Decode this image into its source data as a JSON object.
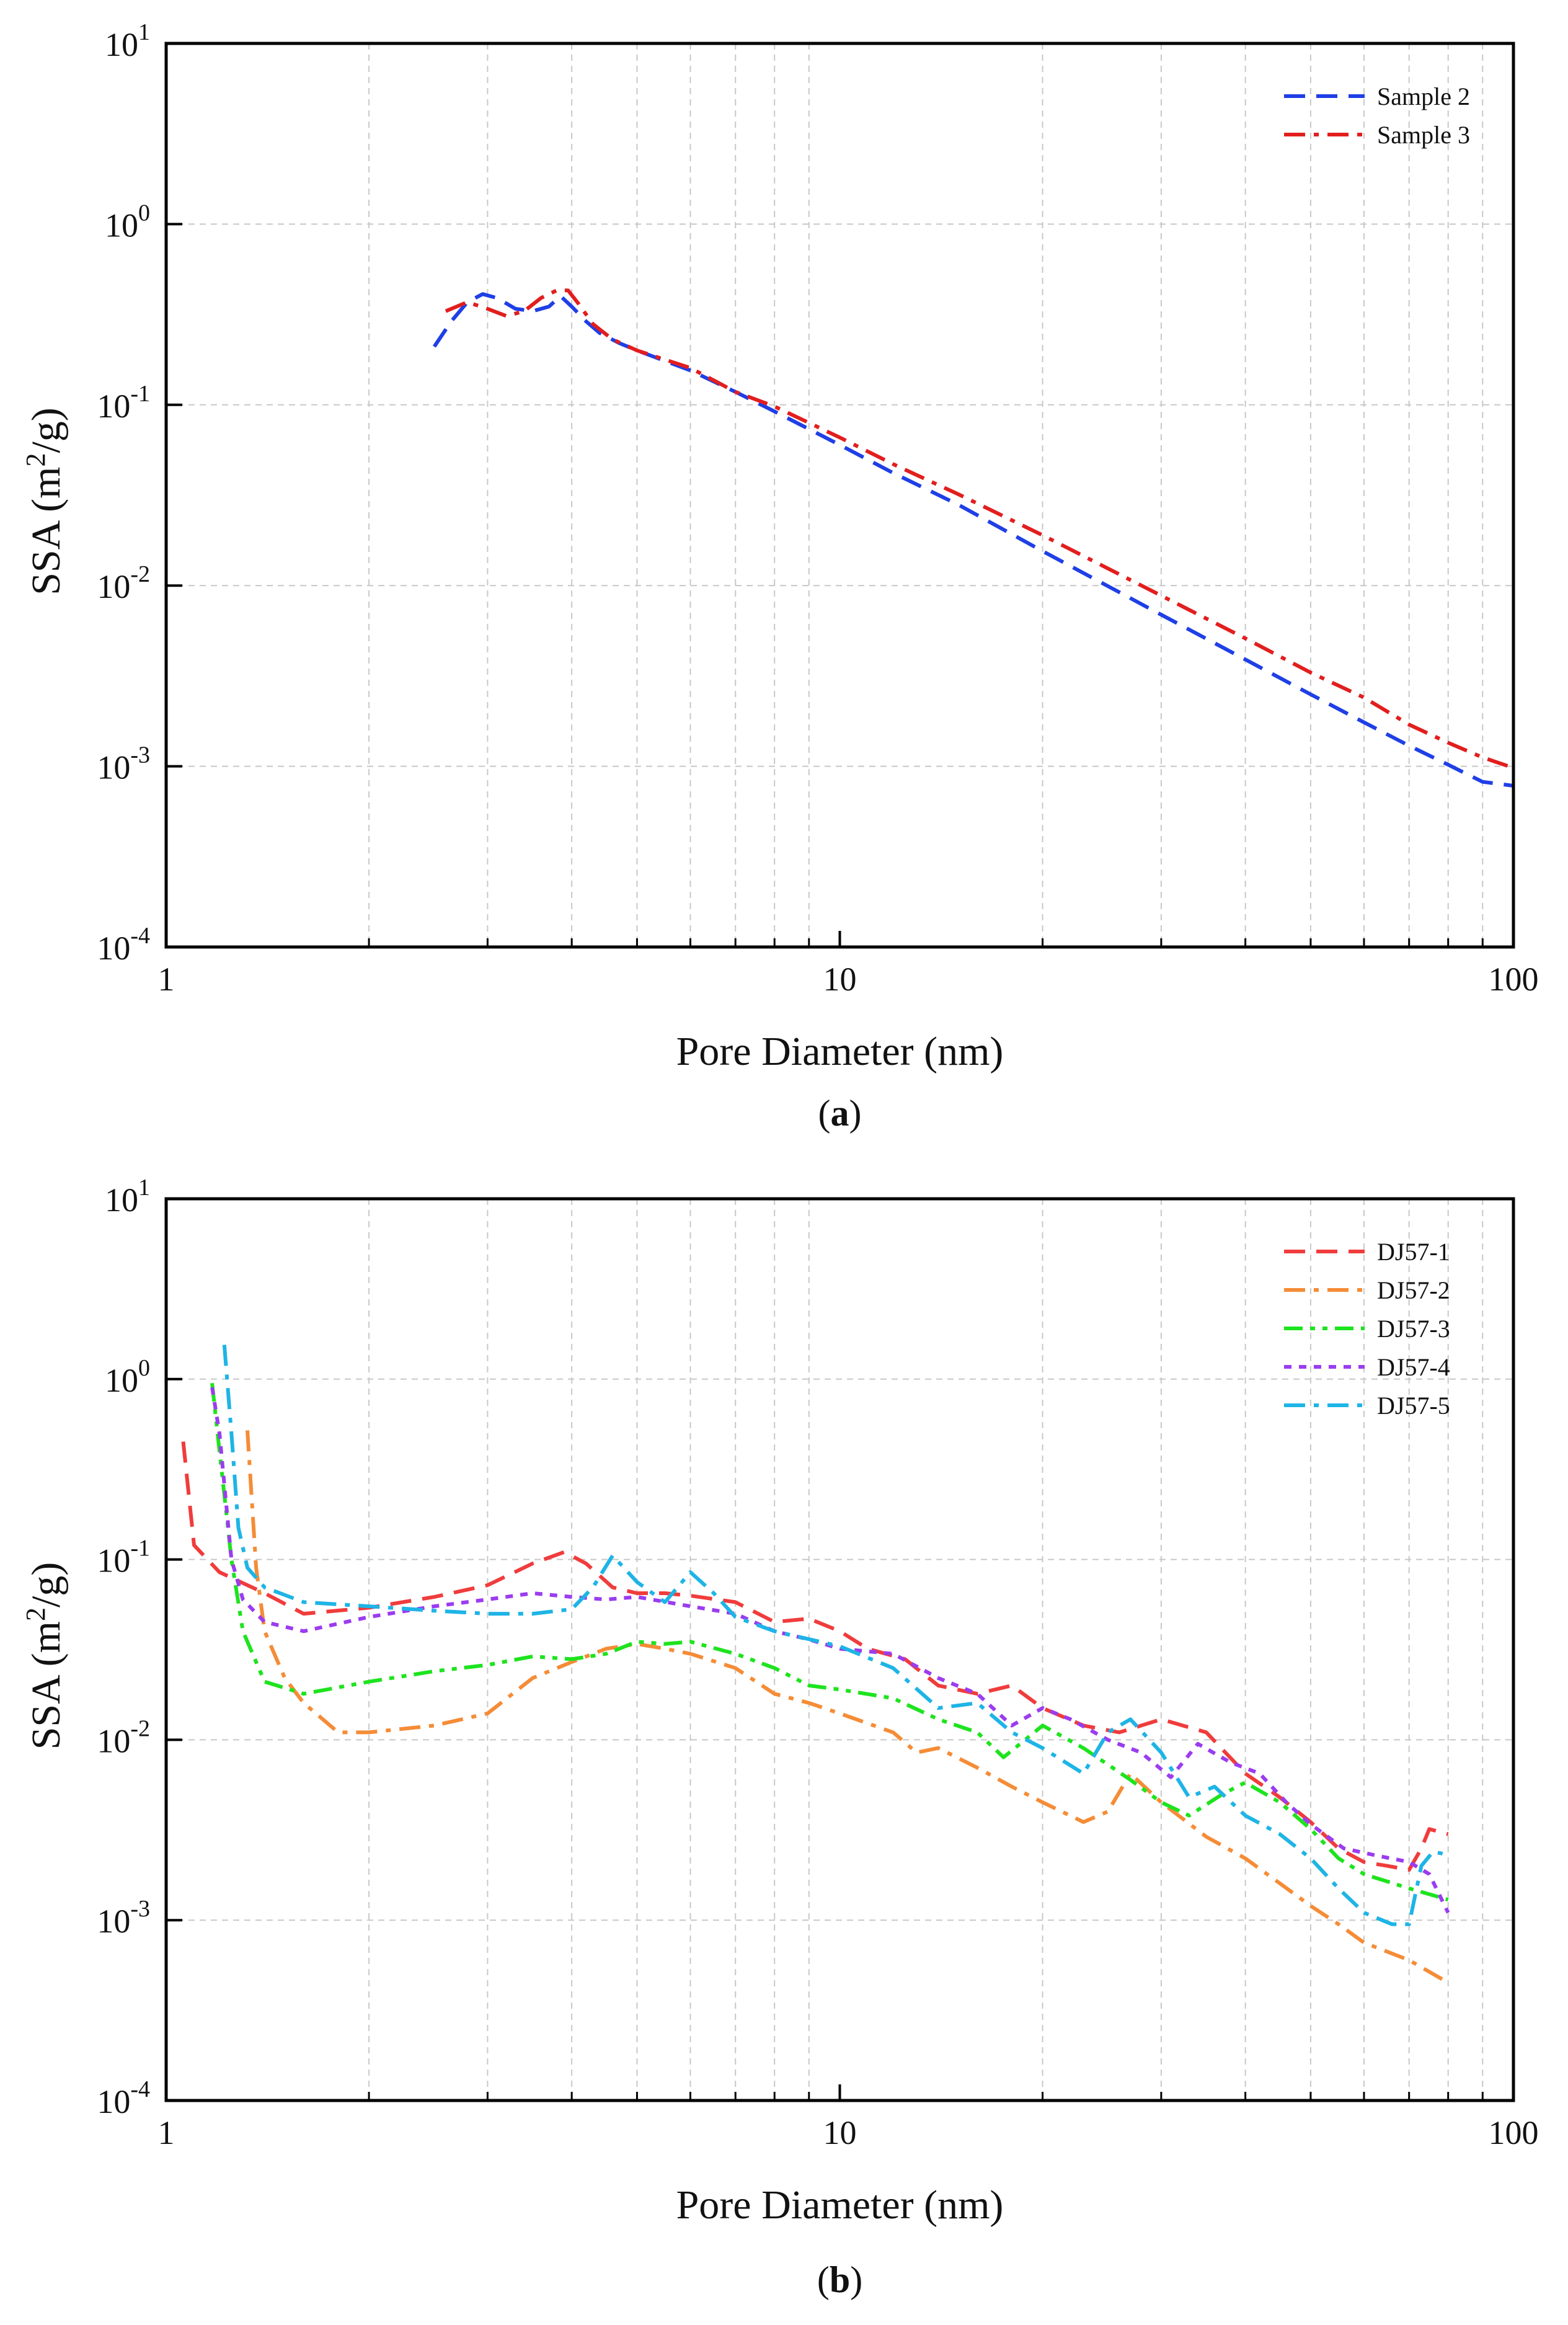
{
  "chart_data": [
    {
      "type": "line",
      "panel_label": "a",
      "xlabel": "Pore Diameter (nm)",
      "ylabel": "SSA (m²/g)",
      "ylabel_base": "SSA (m",
      "ylabel_sup": "2",
      "ylabel_tail": "/g)",
      "x_scale": "log",
      "y_scale": "log",
      "xlim": [
        1,
        100
      ],
      "ylim": [
        0.0001,
        10
      ],
      "x_ticks": [
        1,
        10,
        100
      ],
      "x_tick_labels": [
        "1",
        "10",
        "100"
      ],
      "y_ticks": [
        0.0001,
        0.001,
        0.01,
        0.1,
        1,
        10
      ],
      "y_tick_labels": [
        {
          "base": "10",
          "exp": "-4"
        },
        {
          "base": "10",
          "exp": "-3"
        },
        {
          "base": "10",
          "exp": "-2"
        },
        {
          "base": "10",
          "exp": "-1"
        },
        {
          "base": "10",
          "exp": "0"
        },
        {
          "base": "10",
          "exp": "1"
        }
      ],
      "grid": true,
      "legend_position": "top-right",
      "series": [
        {
          "name": "Sample 2",
          "color": "#1f3fe6",
          "dash": "dash",
          "x": [
            2.5,
            2.65,
            2.8,
            2.95,
            3.1,
            3.3,
            3.5,
            3.7,
            3.85,
            4.0,
            4.2,
            4.4,
            4.7,
            5.0,
            6.0,
            7.0,
            8.0,
            10.0,
            12.0,
            15.0,
            20.0,
            30.0,
            40.0,
            50.0,
            60.0,
            70.0,
            80.0,
            90.0,
            100.0
          ],
          "y": [
            0.21,
            0.29,
            0.37,
            0.41,
            0.39,
            0.34,
            0.33,
            0.35,
            0.4,
            0.35,
            0.29,
            0.25,
            0.22,
            0.2,
            0.155,
            0.118,
            0.092,
            0.06,
            0.042,
            0.028,
            0.0155,
            0.0069,
            0.0039,
            0.0025,
            0.00175,
            0.0013,
            0.00102,
            0.00082,
            0.00078
          ]
        },
        {
          "name": "Sample 3",
          "color": "#e21e1e",
          "dash": "dashdot",
          "x": [
            2.6,
            2.8,
            3.0,
            3.2,
            3.4,
            3.6,
            3.8,
            3.95,
            4.1,
            4.3,
            4.6,
            5.0,
            6.0,
            7.0,
            8.0,
            10.0,
            12.0,
            15.0,
            20.0,
            30.0,
            40.0,
            50.0,
            60.0,
            70.0,
            80.0,
            90.0,
            100.0
          ],
          "y": [
            0.33,
            0.37,
            0.34,
            0.31,
            0.33,
            0.39,
            0.43,
            0.43,
            0.36,
            0.28,
            0.23,
            0.2,
            0.16,
            0.118,
            0.098,
            0.066,
            0.047,
            0.032,
            0.019,
            0.0088,
            0.0051,
            0.0033,
            0.0024,
            0.0017,
            0.00135,
            0.00112,
            0.00098
          ]
        }
      ]
    },
    {
      "type": "line",
      "panel_label": "b",
      "xlabel": "Pore Diameter (nm)",
      "ylabel": "SSA (m²/g)",
      "ylabel_base": "SSA (m",
      "ylabel_sup": "2",
      "ylabel_tail": "/g)",
      "x_scale": "log",
      "y_scale": "log",
      "xlim": [
        1,
        100
      ],
      "ylim": [
        0.0001,
        10
      ],
      "x_ticks": [
        1,
        10,
        100
      ],
      "x_tick_labels": [
        "1",
        "10",
        "100"
      ],
      "y_ticks": [
        0.0001,
        0.001,
        0.01,
        0.1,
        1,
        10
      ],
      "y_tick_labels": [
        {
          "base": "10",
          "exp": "-4"
        },
        {
          "base": "10",
          "exp": "-3"
        },
        {
          "base": "10",
          "exp": "-2"
        },
        {
          "base": "10",
          "exp": "-1"
        },
        {
          "base": "10",
          "exp": "0"
        },
        {
          "base": "10",
          "exp": "1"
        }
      ],
      "grid": true,
      "legend_position": "top-right",
      "series": [
        {
          "name": "DJ57-1",
          "color": "#f03c3c",
          "dash": "dash",
          "x": [
            1.06,
            1.1,
            1.2,
            1.4,
            1.6,
            2.0,
            2.5,
            3.0,
            3.5,
            3.9,
            4.2,
            4.6,
            5.0,
            5.5,
            6.0,
            7.0,
            8.0,
            9.0,
            10.0,
            11.0,
            12.5,
            14.0,
            16.0,
            18.0,
            20.0,
            23.0,
            26.0,
            30.0,
            35.0,
            40.0,
            45.0,
            50.0,
            55.0,
            60.0,
            65.0,
            70.0,
            73.0,
            75.0,
            80.0
          ],
          "y": [
            0.45,
            0.12,
            0.085,
            0.065,
            0.05,
            0.054,
            0.062,
            0.072,
            0.095,
            0.11,
            0.095,
            0.07,
            0.065,
            0.065,
            0.063,
            0.058,
            0.045,
            0.047,
            0.04,
            0.032,
            0.028,
            0.02,
            0.018,
            0.02,
            0.015,
            0.012,
            0.011,
            0.013,
            0.011,
            0.0065,
            0.0048,
            0.0035,
            0.0025,
            0.0021,
            0.002,
            0.0019,
            0.0025,
            0.0032,
            0.003
          ]
        },
        {
          "name": "DJ57-2",
          "color": "#f58c36",
          "dash": "dashdot",
          "x": [
            1.32,
            1.36,
            1.4,
            1.5,
            1.6,
            1.8,
            2.0,
            2.5,
            3.0,
            3.5,
            4.0,
            4.5,
            5.0,
            5.5,
            6.0,
            7.0,
            8.0,
            9.0,
            10.0,
            12.0,
            13.0,
            14.0,
            16.0,
            18.0,
            20.0,
            23.0,
            25.0,
            27.0,
            30.0,
            35.0,
            40.0,
            45.0,
            50.0,
            55.0,
            60.0,
            70.0,
            80.0
          ],
          "y": [
            0.52,
            0.09,
            0.04,
            0.022,
            0.016,
            0.011,
            0.011,
            0.012,
            0.014,
            0.022,
            0.027,
            0.032,
            0.034,
            0.032,
            0.03,
            0.025,
            0.018,
            0.016,
            0.014,
            0.011,
            0.0085,
            0.009,
            0.007,
            0.0055,
            0.0045,
            0.0035,
            0.004,
            0.0065,
            0.0045,
            0.0029,
            0.0022,
            0.0016,
            0.0012,
            0.00095,
            0.00075,
            0.0006,
            0.00045
          ]
        },
        {
          "name": "DJ57-3",
          "color": "#1ee31e",
          "dash": "dashdotdot",
          "x": [
            1.17,
            1.2,
            1.25,
            1.3,
            1.4,
            1.6,
            2.0,
            2.5,
            3.0,
            3.5,
            4.0,
            4.5,
            5.0,
            5.5,
            6.0,
            7.0,
            8.0,
            9.0,
            10.0,
            12.0,
            14.0,
            16.0,
            17.5,
            20.0,
            23.0,
            27.0,
            30.0,
            33.0,
            37.0,
            40.0,
            45.0,
            50.0,
            55.0,
            60.0,
            70.0,
            80.0
          ],
          "y": [
            0.95,
            0.4,
            0.1,
            0.04,
            0.021,
            0.018,
            0.021,
            0.024,
            0.026,
            0.029,
            0.028,
            0.03,
            0.035,
            0.034,
            0.035,
            0.03,
            0.025,
            0.02,
            0.019,
            0.017,
            0.013,
            0.011,
            0.008,
            0.012,
            0.009,
            0.006,
            0.0045,
            0.0038,
            0.005,
            0.0058,
            0.0045,
            0.0032,
            0.0022,
            0.0018,
            0.0015,
            0.0013
          ]
        },
        {
          "name": "DJ57-4",
          "color": "#9b3cf0",
          "dash": "dot",
          "x": [
            1.17,
            1.2,
            1.25,
            1.3,
            1.4,
            1.6,
            2.0,
            2.5,
            3.0,
            3.5,
            4.0,
            4.5,
            5.0,
            6.0,
            7.0,
            8.0,
            9.0,
            10.0,
            12.0,
            14.0,
            16.0,
            18.0,
            20.0,
            22.0,
            25.0,
            28.0,
            31.0,
            34.0,
            38.0,
            42.0,
            46.0,
            50.0,
            56.0,
            62.0,
            70.0,
            75.0,
            80.0
          ],
          "y": [
            0.9,
            0.5,
            0.1,
            0.06,
            0.045,
            0.04,
            0.048,
            0.055,
            0.06,
            0.065,
            0.062,
            0.06,
            0.062,
            0.055,
            0.05,
            0.04,
            0.036,
            0.032,
            0.03,
            0.022,
            0.018,
            0.012,
            0.015,
            0.013,
            0.01,
            0.0085,
            0.0062,
            0.0095,
            0.0075,
            0.0065,
            0.0045,
            0.0034,
            0.0025,
            0.0023,
            0.0021,
            0.0018,
            0.0011
          ]
        },
        {
          "name": "DJ57-5",
          "color": "#1eb4e6",
          "dash": "dashdot",
          "x": [
            1.22,
            1.25,
            1.28,
            1.32,
            1.4,
            1.6,
            2.0,
            2.5,
            3.0,
            3.5,
            4.0,
            4.3,
            4.6,
            5.0,
            5.5,
            6.0,
            6.5,
            7.0,
            8.0,
            10.0,
            12.0,
            14.0,
            16.0,
            18.0,
            20.0,
            23.0,
            25.0,
            27.0,
            30.0,
            33.0,
            36.0,
            40.0,
            45.0,
            50.0,
            55.0,
            60.0,
            66.0,
            70.0,
            73.0,
            76.0,
            80.0
          ],
          "y": [
            1.55,
            0.5,
            0.15,
            0.09,
            0.07,
            0.058,
            0.055,
            0.052,
            0.05,
            0.05,
            0.053,
            0.07,
            0.105,
            0.075,
            0.058,
            0.085,
            0.065,
            0.048,
            0.04,
            0.033,
            0.025,
            0.015,
            0.016,
            0.011,
            0.009,
            0.0065,
            0.011,
            0.013,
            0.0085,
            0.0048,
            0.0055,
            0.0038,
            0.003,
            0.0022,
            0.0015,
            0.0011,
            0.00095,
            0.00095,
            0.002,
            0.0024,
            0.0023
          ]
        }
      ]
    }
  ]
}
